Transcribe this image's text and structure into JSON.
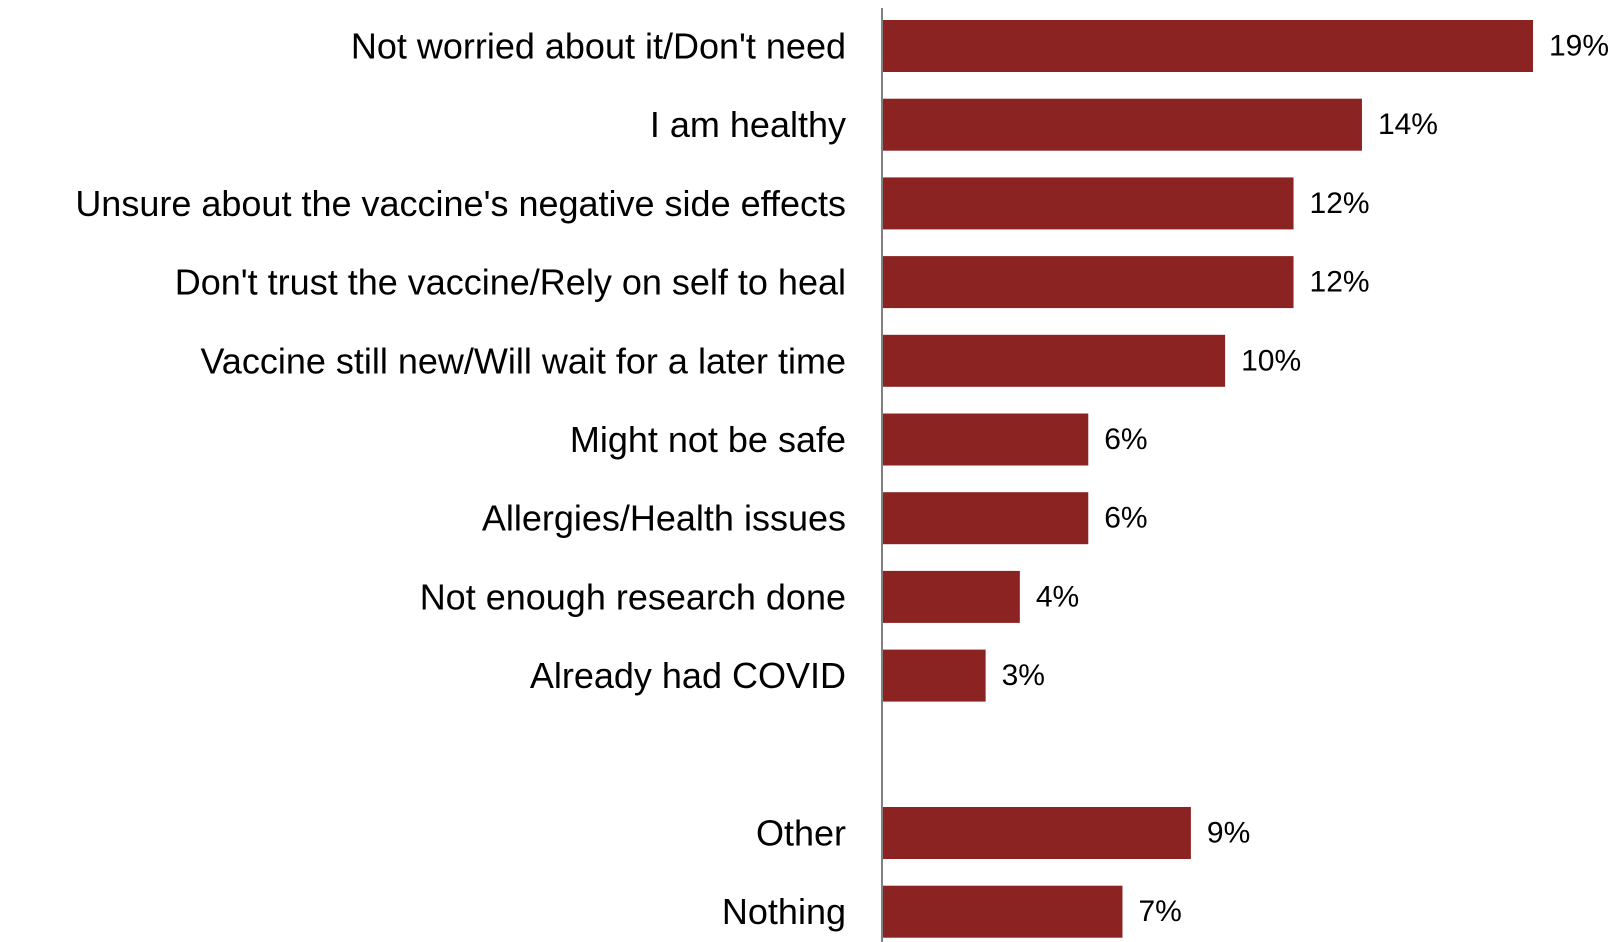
{
  "chart_data": {
    "type": "bar",
    "orientation": "horizontal",
    "categories": [
      "Not worried about it/Don't need",
      "I am healthy",
      "Unsure about the vaccine's negative side effects",
      "Don't trust the vaccine/Rely on self to heal",
      "Vaccine still new/Will wait for a later time",
      "Might not be safe",
      "Allergies/Health issues",
      "Not enough research done",
      "Already had COVID",
      "",
      "Other",
      "Nothing"
    ],
    "values": [
      19,
      14,
      12,
      12,
      10,
      6,
      6,
      4,
      3,
      null,
      9,
      7
    ],
    "value_labels": [
      "19%",
      "14%",
      "12%",
      "12%",
      "10%",
      "6%",
      "6%",
      "4%",
      "3%",
      "",
      "9%",
      "7%"
    ],
    "unit": "%",
    "xlim": [
      0,
      19
    ],
    "grid": false,
    "legend": "none",
    "bar_color": "#8B2323",
    "axis_color": "#808080"
  }
}
